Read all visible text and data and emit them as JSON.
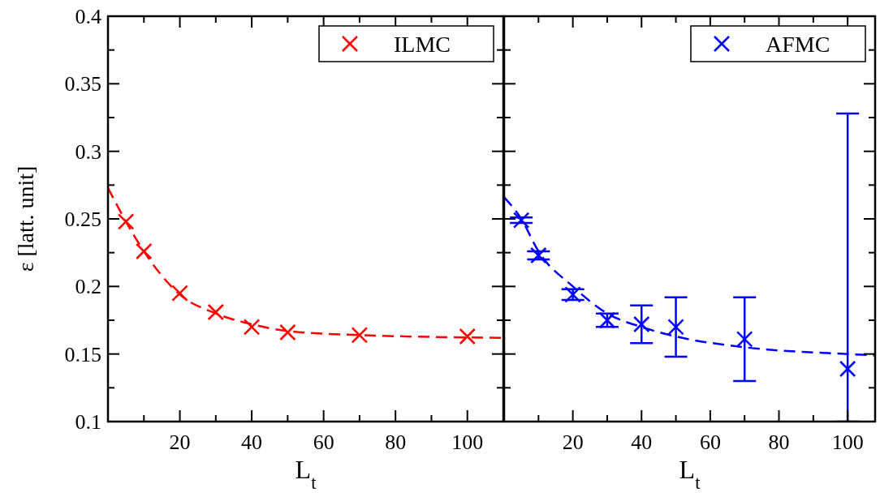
{
  "chart_data": [
    {
      "type": "scatter",
      "xlabel": "L$_{t}$",
      "ylabel": "ε [latt. unit]",
      "xlim": [
        0,
        110
      ],
      "ylim": [
        0.1,
        0.4
      ],
      "xticks": [
        {
          "value": 10,
          "label": null
        },
        20,
        {
          "value": 30,
          "label": null
        },
        40,
        {
          "value": 50,
          "label": null
        },
        60,
        {
          "value": 70,
          "label": null
        },
        80,
        {
          "value": 90,
          "label": null
        },
        100
      ],
      "yticks": [
        0.1,
        {
          "value": 0.125,
          "label": null
        },
        0.15,
        {
          "value": 0.175,
          "label": null
        },
        0.2,
        {
          "value": 0.225,
          "label": null
        },
        0.25,
        {
          "value": 0.275,
          "label": null
        },
        0.3,
        {
          "value": 0.325,
          "label": null
        },
        0.35,
        {
          "value": 0.375,
          "label": null
        },
        0.4
      ],
      "legend": "top right",
      "grid": false,
      "series": [
        {
          "name": "ILMC",
          "marker": "cross",
          "color": "#ff0000",
          "x": [
            5,
            10,
            20,
            30,
            40,
            50,
            70,
            100
          ],
          "values": [
            0.248,
            0.226,
            0.195,
            0.181,
            0.17,
            0.166,
            0.164,
            0.163
          ]
        },
        {
          "type": "line",
          "line_style": "dashed",
          "marker": "none",
          "color": "#ff0000",
          "x": [
            0,
            5,
            10,
            20,
            30,
            40,
            50,
            70,
            110
          ],
          "values": [
            0.273,
            0.248,
            0.226,
            0.194,
            0.18,
            0.172,
            0.167,
            0.164,
            0.162
          ]
        }
      ]
    },
    {
      "type": "scatter",
      "xlabel": "L$_{t}$",
      "xlim": [
        0,
        108
      ],
      "ylim": [
        0.1,
        0.4
      ],
      "xticks": [
        {
          "value": 10,
          "label": null
        },
        20,
        {
          "value": 30,
          "label": null
        },
        40,
        {
          "value": 50,
          "label": null
        },
        60,
        {
          "value": 70,
          "label": null
        },
        80,
        {
          "value": 90,
          "label": null
        },
        100
      ],
      "yticks": [
        0.1,
        {
          "value": 0.125,
          "label": null
        },
        0.15,
        {
          "value": 0.175,
          "label": null
        },
        0.2,
        {
          "value": 0.225,
          "label": null
        },
        0.25,
        {
          "value": 0.275,
          "label": null
        },
        0.3,
        {
          "value": 0.325,
          "label": null
        },
        0.35,
        {
          "value": 0.375,
          "label": null
        },
        0.4
      ],
      "tick_labels": "x",
      "legend": "top right",
      "grid": false,
      "series": [
        {
          "name": "AFMC",
          "marker": "cross",
          "color": "#0000ff",
          "x": [
            5,
            10,
            20,
            30,
            40,
            50,
            70,
            100
          ],
          "values": [
            0.249,
            0.223,
            0.194,
            0.175,
            0.172,
            0.17,
            0.161,
            0.139
          ],
          "errors": [
            0.002,
            0.003,
            0.004,
            0.005,
            0.014,
            0.022,
            0.031,
            [
              0.1,
              0.328
            ]
          ]
        },
        {
          "type": "line",
          "line_style": "dashed",
          "marker": "none",
          "color": "#0000ff",
          "x": [
            0,
            5,
            10,
            20,
            30,
            40,
            50,
            70,
            100,
            108
          ],
          "values": [
            0.266,
            0.25,
            0.226,
            0.2,
            0.18,
            0.17,
            0.163,
            0.155,
            0.15,
            0.149
          ]
        }
      ]
    }
  ]
}
